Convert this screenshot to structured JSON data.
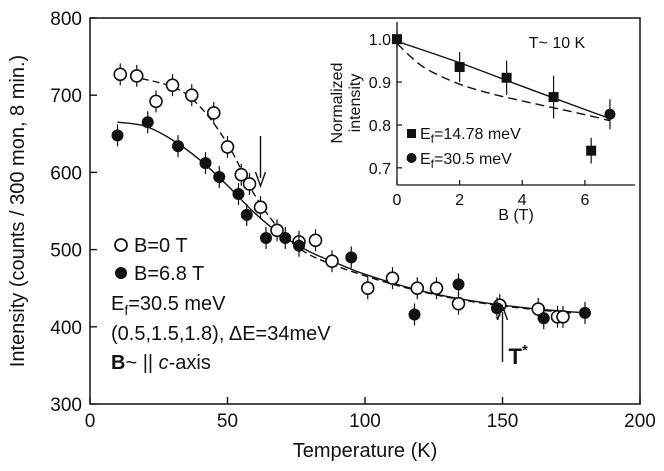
{
  "chart_data": [
    {
      "type": "scatter",
      "title": "",
      "xlabel": "Temperature (K)",
      "ylabel": "Intensity (counts / 300 mon, 8 min.)",
      "xlim": [
        0,
        200
      ],
      "ylim": [
        300,
        800
      ],
      "xticks": [
        0,
        50,
        100,
        150,
        200
      ],
      "yticks": [
        300,
        400,
        500,
        600,
        700,
        800
      ],
      "series": [
        {
          "name": "B=0 T",
          "marker": "open-circle",
          "points": [
            {
              "x": 11,
              "y": 727
            },
            {
              "x": 17,
              "y": 725
            },
            {
              "x": 24,
              "y": 692
            },
            {
              "x": 30,
              "y": 713
            },
            {
              "x": 37,
              "y": 700
            },
            {
              "x": 45,
              "y": 677
            },
            {
              "x": 50,
              "y": 633
            },
            {
              "x": 55,
              "y": 597
            },
            {
              "x": 58,
              "y": 585
            },
            {
              "x": 62,
              "y": 555
            },
            {
              "x": 68,
              "y": 525
            },
            {
              "x": 76,
              "y": 510
            },
            {
              "x": 82,
              "y": 512
            },
            {
              "x": 88,
              "y": 485
            },
            {
              "x": 101,
              "y": 450
            },
            {
              "x": 110,
              "y": 463
            },
            {
              "x": 119,
              "y": 450
            },
            {
              "x": 126,
              "y": 450
            },
            {
              "x": 134,
              "y": 430
            },
            {
              "x": 149,
              "y": 428
            },
            {
              "x": 163,
              "y": 423
            },
            {
              "x": 170,
              "y": 413
            },
            {
              "x": 172,
              "y": 413
            }
          ],
          "fit": [
            [
              11,
              727
            ],
            [
              30,
              711
            ],
            [
              40,
              685
            ],
            [
              50,
              637
            ],
            [
              60,
              570
            ],
            [
              70,
              522
            ],
            [
              80,
              493
            ],
            [
              100,
              466
            ],
            [
              120,
              446
            ],
            [
              140,
              432
            ],
            [
              160,
              423
            ],
            [
              175,
              418
            ]
          ]
        },
        {
          "name": "B=6.8 T",
          "marker": "filled-circle",
          "points": [
            {
              "x": 10,
              "y": 648
            },
            {
              "x": 21,
              "y": 665
            },
            {
              "x": 32,
              "y": 634
            },
            {
              "x": 42,
              "y": 612
            },
            {
              "x": 47,
              "y": 594
            },
            {
              "x": 54,
              "y": 572
            },
            {
              "x": 57,
              "y": 545
            },
            {
              "x": 64,
              "y": 515
            },
            {
              "x": 71,
              "y": 515
            },
            {
              "x": 76,
              "y": 505
            },
            {
              "x": 95,
              "y": 490
            },
            {
              "x": 118,
              "y": 416
            },
            {
              "x": 134,
              "y": 455
            },
            {
              "x": 148,
              "y": 424
            },
            {
              "x": 165,
              "y": 411
            },
            {
              "x": 180,
              "y": 418
            }
          ],
          "fit": [
            [
              10,
              665
            ],
            [
              20,
              660
            ],
            [
              30,
              642
            ],
            [
              40,
              616
            ],
            [
              50,
              583
            ],
            [
              60,
              547
            ],
            [
              70,
              518
            ],
            [
              80,
              497
            ],
            [
              90,
              482
            ],
            [
              100,
              468
            ],
            [
              120,
              447
            ],
            [
              140,
              433
            ],
            [
              160,
              424
            ],
            [
              180,
              418
            ]
          ]
        }
      ],
      "annotations": {
        "arrow_down_at_x": 62,
        "arrow_up_at_x": 150,
        "t_star_label": "T",
        "t_star_superscript": "*",
        "legend_b0": "B=0 T",
        "legend_b68": "B=6.8 T",
        "ef_main": "E",
        "ef_main_sub": "f",
        "ef_main_value": "=30.5 meV",
        "q_line": "(0.5,1.5,1.8), ΔE=34meV",
        "b_bold": "B",
        "b_rest": "~ || ",
        "b_axis_italic": "c",
        "b_axis_rest": "-axis"
      }
    },
    {
      "type": "scatter",
      "title": "T~ 10 K",
      "xlabel": "B (T)",
      "ylabel": "Normalized intensity",
      "ylabel_lines": [
        "Normalized",
        "intensity"
      ],
      "xlim": [
        0,
        7.6
      ],
      "ylim": [
        0.66,
        1.04
      ],
      "xticks": [
        0,
        2,
        4,
        6
      ],
      "yticks": [
        0.7,
        0.8,
        0.9,
        1.0
      ],
      "ytick_labels": [
        "0.7",
        "0.8",
        "0.9",
        "1.0"
      ],
      "series": [
        {
          "name": "Ef=14.78 meV",
          "label_main": "E",
          "label_sub": "f",
          "label_value": "=14.78 meV",
          "marker": "filled-square",
          "points": [
            {
              "x": 0,
              "y": 1.0,
              "err": 0.02
            },
            {
              "x": 2,
              "y": 0.935,
              "err": 0.035
            },
            {
              "x": 3.5,
              "y": 0.91,
              "err": 0.04
            },
            {
              "x": 5,
              "y": 0.865,
              "err": 0.05
            },
            {
              "x": 6.2,
              "y": 0.74,
              "err": 0.03
            }
          ],
          "fit": [
            [
              0,
              0.995
            ],
            [
              2,
              0.945
            ],
            [
              4,
              0.89
            ],
            [
              6,
              0.836
            ],
            [
              6.8,
              0.815
            ]
          ]
        },
        {
          "name": "Ef=30.5 meV",
          "label_main": "E",
          "label_sub": "f",
          "label_value": "=30.5 meV",
          "marker": "filled-circle",
          "points": [
            {
              "x": 6.8,
              "y": 0.825,
              "err": 0.035
            }
          ],
          "fit": [
            [
              0,
              0.99
            ],
            [
              0.5,
              0.955
            ],
            [
              1,
              0.928
            ],
            [
              2,
              0.895
            ],
            [
              3,
              0.873
            ],
            [
              4,
              0.856
            ],
            [
              5,
              0.84
            ],
            [
              6,
              0.824
            ],
            [
              6.8,
              0.81
            ]
          ]
        }
      ]
    }
  ]
}
